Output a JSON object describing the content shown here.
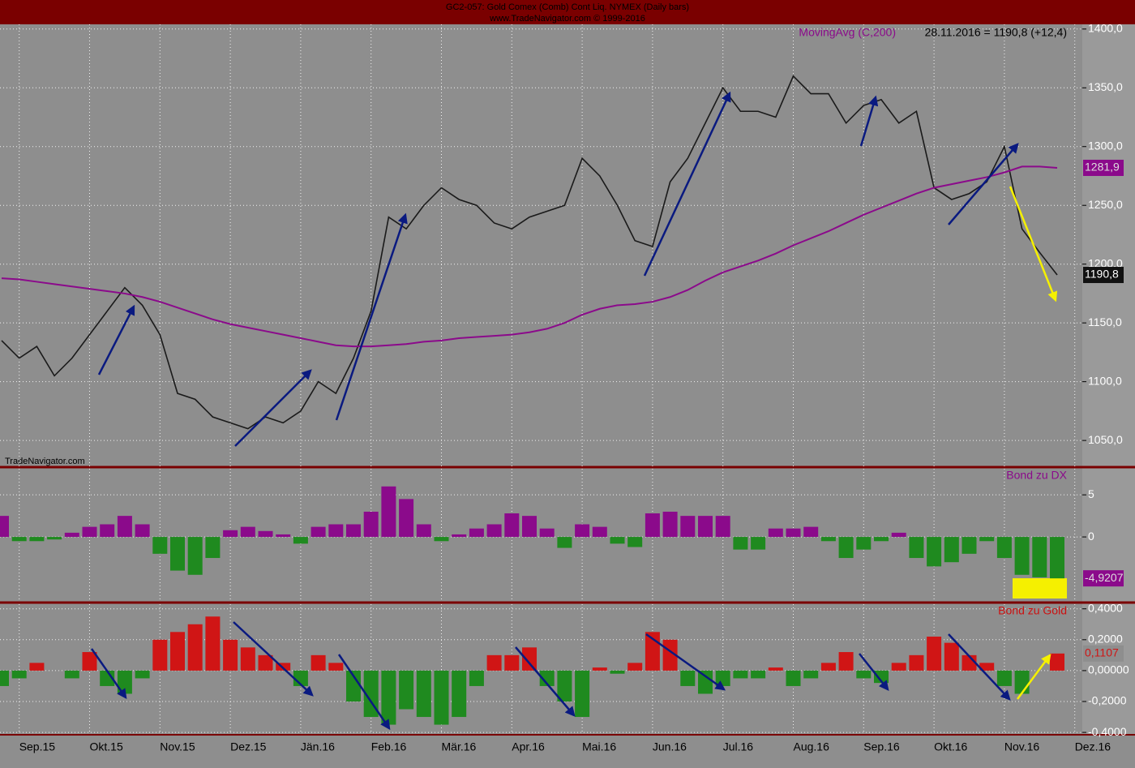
{
  "header": {
    "title": "GC2-057: Gold Comex (Comb) Cont Liq. NYMEX (Daily bars)",
    "subtitle": "www.TradeNavigator.com © 1999-2016",
    "watermark": "TradeNavigator.com"
  },
  "chart_data": [
    {
      "type": "line",
      "annotation": "28.11.2016 = 1190,8 (+12,4)",
      "categories": [
        null,
        "Sep.15",
        null,
        null,
        null,
        "Okt.15",
        null,
        null,
        null,
        "Nov.15",
        null,
        null,
        null,
        "Dez.15",
        null,
        null,
        null,
        "Jän.16",
        null,
        null,
        null,
        "Feb.16",
        null,
        null,
        null,
        "Mär.16",
        null,
        null,
        null,
        "Apr.16",
        null,
        null,
        null,
        "Mai.16",
        null,
        null,
        null,
        "Jun.16",
        null,
        null,
        null,
        "Jul.16",
        null,
        null,
        null,
        "Aug.16",
        null,
        null,
        null,
        "Sep.16",
        null,
        null,
        null,
        "Okt.16",
        null,
        null,
        null,
        "Nov.16",
        null,
        null,
        null,
        "Dez.16"
      ],
      "series": [
        {
          "color": "#1a1a1a",
          "values": [
            1135,
            1120,
            1130,
            1105,
            1120,
            1140,
            1160,
            1180,
            1165,
            1140,
            1090,
            1085,
            1070,
            1065,
            1060,
            1070,
            1065,
            1075,
            1100,
            1090,
            1120,
            1160,
            1240,
            1230,
            1250,
            1265,
            1255,
            1250,
            1235,
            1230,
            1240,
            1245,
            1250,
            1290,
            1275,
            1250,
            1220,
            1215,
            1270,
            1290,
            1320,
            1350,
            1330,
            1330,
            1325,
            1360,
            1345,
            1345,
            1320,
            1335,
            1340,
            1320,
            1330,
            1265,
            1255,
            1260,
            1270,
            1300,
            1230,
            1210,
            1190.8,
            null
          ],
          "value_labels": [
            null,
            null,
            null,
            null,
            null,
            null,
            null,
            null,
            null,
            null,
            null,
            null,
            null,
            null,
            null,
            null,
            null,
            null,
            null,
            null,
            null,
            null,
            null,
            null,
            null,
            null,
            null,
            null,
            null,
            null,
            null,
            null,
            null,
            null,
            null,
            null,
            null,
            null,
            null,
            null,
            null,
            null,
            null,
            null,
            null,
            null,
            null,
            null,
            null,
            null,
            null,
            null,
            null,
            null,
            null,
            null,
            null,
            null,
            null,
            null,
            "1190,8",
            null
          ]
        },
        {
          "name": "MovingAvg (C,200)",
          "color": "#8b0a8b",
          "values": [
            1188,
            1187,
            1185,
            1183,
            1181,
            1179,
            1177,
            1175,
            1172,
            1168,
            1163,
            1158,
            1153,
            1149,
            1146,
            1143,
            1140,
            1137,
            1134,
            1131,
            1130,
            1130,
            1131,
            1132,
            1134,
            1135,
            1137,
            1138,
            1139,
            1140,
            1142,
            1145,
            1150,
            1157,
            1162,
            1165,
            1166,
            1168,
            1172,
            1178,
            1186,
            1193,
            1198,
            1203,
            1209,
            1216,
            1222,
            1228,
            1235,
            1242,
            1248,
            1254,
            1260,
            1265,
            1268,
            1271,
            1274,
            1278,
            1283,
            1283,
            1281.9,
            null
          ],
          "value_labels": [
            null,
            null,
            null,
            null,
            null,
            null,
            null,
            null,
            null,
            null,
            null,
            null,
            null,
            null,
            null,
            null,
            null,
            null,
            null,
            null,
            null,
            null,
            null,
            null,
            null,
            null,
            null,
            null,
            null,
            null,
            null,
            null,
            null,
            null,
            null,
            null,
            null,
            null,
            null,
            null,
            null,
            null,
            null,
            null,
            null,
            null,
            null,
            null,
            null,
            null,
            null,
            null,
            null,
            null,
            null,
            null,
            null,
            null,
            null,
            null,
            "1281,9",
            null
          ]
        }
      ],
      "ylim": [
        1028,
        1404
      ],
      "yticks": [
        {
          "value": 1050,
          "label": "1050,0"
        },
        {
          "value": 1100,
          "label": "1100,0"
        },
        {
          "value": 1150,
          "label": "1150,0"
        },
        {
          "value": 1200,
          "label": "1200,0"
        },
        {
          "value": 1250,
          "label": "1250,0"
        },
        {
          "value": 1300,
          "label": "1300,0"
        },
        {
          "value": 1350,
          "label": "1350,0"
        },
        {
          "value": 1400,
          "label": "1400,0"
        }
      ],
      "grid": true
    },
    {
      "type": "bar",
      "title": "Bond zu DX",
      "title_color": "#8b0a8b",
      "pos_color": "#8b0a8b",
      "neg_color": "#1f8a1f",
      "values": [
        2.5,
        -0.5,
        -0.5,
        -0.3,
        0.5,
        1.2,
        1.5,
        2.5,
        1.5,
        -2,
        -4,
        -4.5,
        -2.5,
        0.8,
        1.2,
        0.7,
        0.3,
        -0.8,
        1.2,
        1.5,
        1.5,
        3,
        6,
        4.5,
        1.5,
        -0.5,
        0.3,
        1,
        1.5,
        2.8,
        2.5,
        1,
        -1.3,
        1.5,
        1.2,
        -0.8,
        -1.2,
        2.8,
        3,
        2.5,
        2.5,
        2.5,
        -1.5,
        -1.5,
        1,
        1,
        1.2,
        -0.5,
        -2.5,
        -1.5,
        -0.5,
        0.5,
        -2.5,
        -3.5,
        -3,
        -2,
        -0.5,
        -2.5,
        -4.5,
        -4.8,
        -4.9207,
        null
      ],
      "value_labels": [
        null,
        null,
        null,
        null,
        null,
        null,
        null,
        null,
        null,
        null,
        null,
        null,
        null,
        null,
        null,
        null,
        null,
        null,
        null,
        null,
        null,
        null,
        null,
        null,
        null,
        null,
        null,
        null,
        null,
        null,
        null,
        null,
        null,
        null,
        null,
        null,
        null,
        null,
        null,
        null,
        null,
        null,
        null,
        null,
        null,
        null,
        null,
        null,
        null,
        null,
        null,
        null,
        null,
        null,
        null,
        null,
        null,
        null,
        null,
        null,
        "-4,9207",
        null
      ],
      "ylim": [
        -7.7,
        8.1
      ],
      "yticks": [
        0,
        5
      ],
      "grid": true
    },
    {
      "type": "bar",
      "title": "Bond zu Gold",
      "title_color": "#cc1010",
      "pos_color": "#d01515",
      "neg_color": "#1f8a1f",
      "values": [
        -0.1,
        -0.05,
        0.05,
        0,
        -0.05,
        0.12,
        -0.1,
        -0.15,
        -0.05,
        0.2,
        0.25,
        0.3,
        0.35,
        0.2,
        0.15,
        0.1,
        0.05,
        -0.1,
        0.1,
        0.05,
        -0.2,
        -0.3,
        -0.35,
        -0.25,
        -0.3,
        -0.35,
        -0.3,
        -0.1,
        0.1,
        0.1,
        0.15,
        -0.1,
        -0.2,
        -0.3,
        0.02,
        -0.02,
        0.05,
        0.25,
        0.2,
        -0.1,
        -0.15,
        -0.1,
        -0.05,
        -0.05,
        0.02,
        -0.1,
        -0.05,
        0.05,
        0.12,
        -0.05,
        -0.08,
        0.05,
        0.1,
        0.22,
        0.18,
        0.1,
        0.05,
        -0.1,
        -0.15,
        0,
        0.1107,
        null
      ],
      "value_labels": [
        null,
        null,
        null,
        null,
        null,
        null,
        null,
        null,
        null,
        null,
        null,
        null,
        null,
        null,
        null,
        null,
        null,
        null,
        null,
        null,
        null,
        null,
        null,
        null,
        null,
        null,
        null,
        null,
        null,
        null,
        null,
        null,
        null,
        null,
        null,
        null,
        null,
        null,
        null,
        null,
        null,
        null,
        null,
        null,
        null,
        null,
        null,
        null,
        null,
        null,
        null,
        null,
        null,
        null,
        null,
        null,
        null,
        null,
        null,
        null,
        "0,1107",
        null
      ],
      "ylim": [
        -0.41,
        0.43
      ],
      "yticks": [
        {
          "value": 0.4,
          "label": "0,4000"
        },
        {
          "value": 0.2,
          "label": "0,2000"
        },
        {
          "value": 0,
          "label": "0,00000"
        },
        {
          "value": -0.2,
          "label": "-0,2000"
        },
        {
          "value": -0.4,
          "label": "-0,4000"
        }
      ],
      "grid": true
    }
  ]
}
